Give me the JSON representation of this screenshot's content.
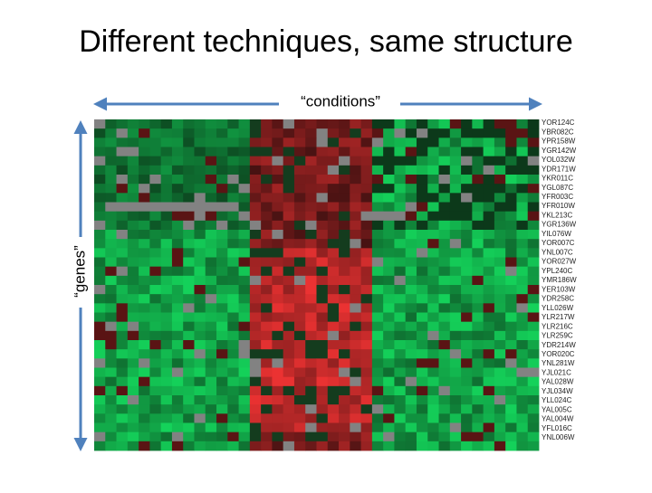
{
  "header": {
    "title": "Different techniques, same structure"
  },
  "axes": {
    "x_label": "“conditions”",
    "y_label": "“genes”"
  },
  "genes": [
    "YOR124C",
    "YBR082C",
    "YPR158W",
    "YGR142W",
    "YOL032W",
    "YDR171W",
    "YKR011C",
    "YGL087C",
    "YFR003C",
    "YFR010W",
    "YKL213C",
    "YGR136W",
    "YIL076W",
    "YOR007C",
    "YNL007C",
    "YOR027W",
    "YPL240C",
    "YMR186W",
    "YER103W",
    "YDR258C",
    "YLL026W",
    "YLR217W",
    "YLR216C",
    "YLR259C",
    "YDR214W",
    "YOR020C",
    "YNL281W",
    "YJL021C",
    "YAL028W",
    "YJL034W",
    "YLL024C",
    "YAL005C",
    "YAL004W",
    "YFL016C",
    "YNL006W"
  ]
}
